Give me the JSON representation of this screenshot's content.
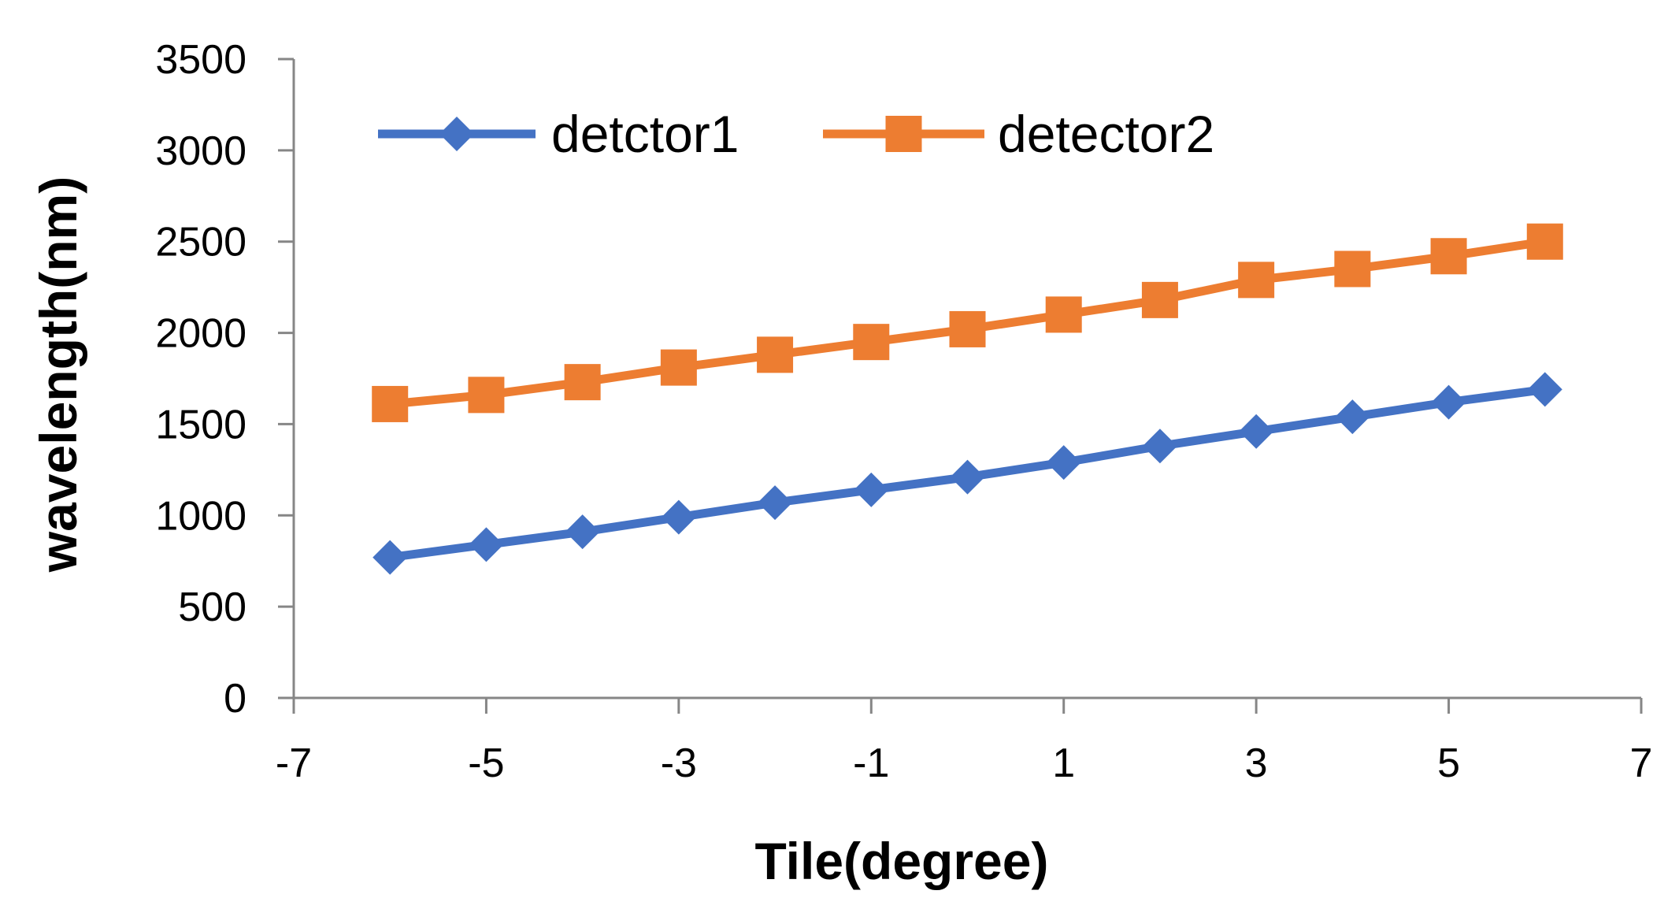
{
  "chart_data": {
    "type": "line",
    "title": "",
    "xlabel": "Tile(degree)",
    "ylabel": "wavelength(nm)",
    "xlim": [
      -7,
      7
    ],
    "ylim": [
      0,
      3500
    ],
    "x_ticks": [
      -7,
      -5,
      -3,
      -1,
      1,
      3,
      5,
      7
    ],
    "y_ticks": [
      0,
      500,
      1000,
      1500,
      2000,
      2500,
      3000,
      3500
    ],
    "grid": false,
    "legend_position": "top-left",
    "x": [
      -6,
      -5,
      -4,
      -3,
      -2,
      -1,
      0,
      1,
      2,
      3,
      4,
      5,
      6
    ],
    "series": [
      {
        "name": "detctor1",
        "color": "#4472C4",
        "marker": "diamond",
        "values": [
          770,
          840,
          910,
          990,
          1070,
          1140,
          1210,
          1290,
          1380,
          1460,
          1540,
          1620,
          1690
        ]
      },
      {
        "name": "detector2",
        "color": "#ED7D31",
        "marker": "square",
        "values": [
          1610,
          1660,
          1730,
          1810,
          1880,
          1950,
          2020,
          2100,
          2180,
          2290,
          2350,
          2420,
          2500
        ]
      }
    ]
  }
}
